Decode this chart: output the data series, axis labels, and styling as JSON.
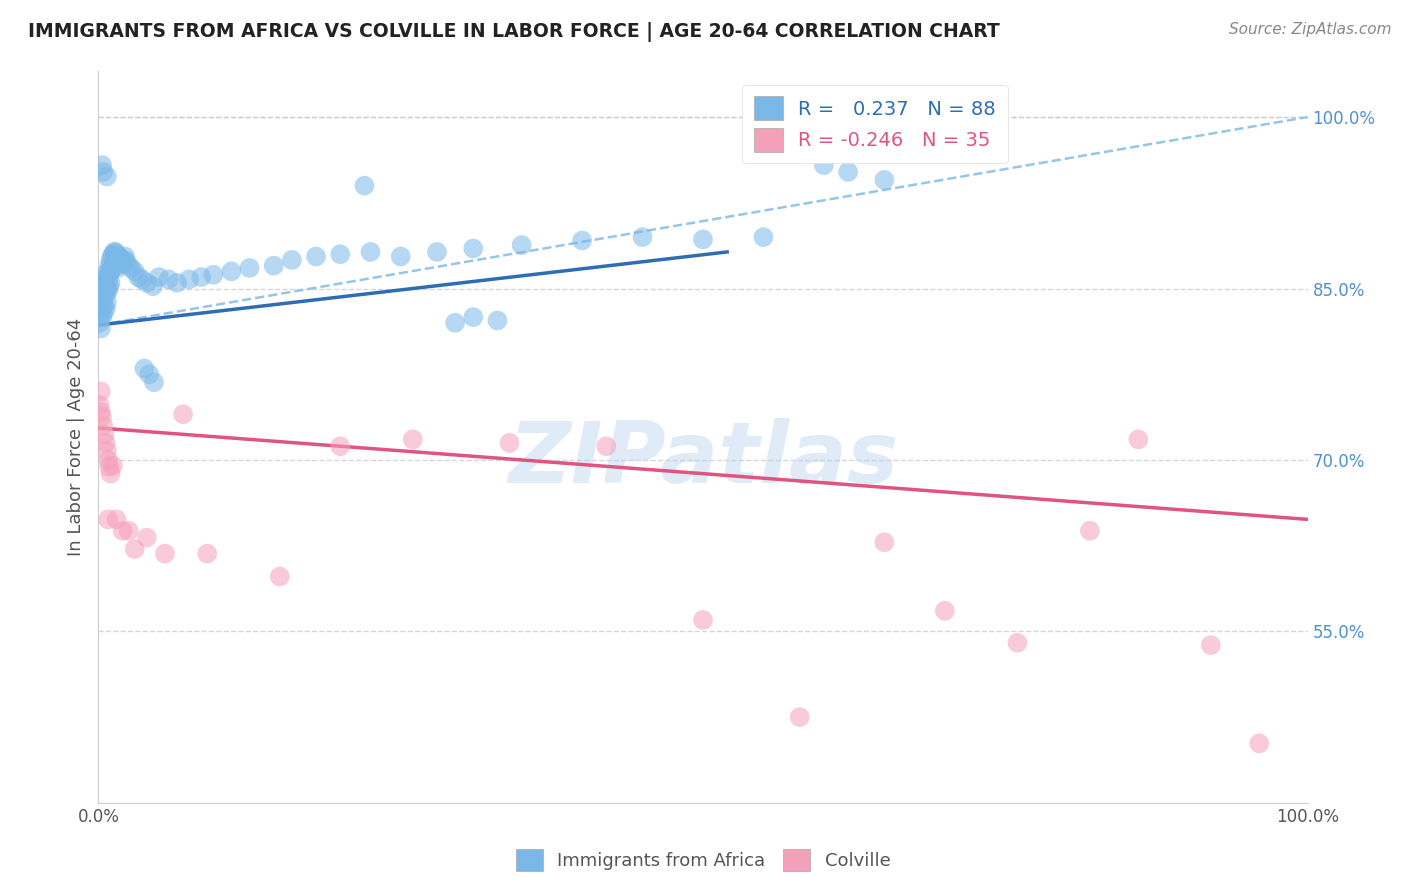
{
  "title": "IMMIGRANTS FROM AFRICA VS COLVILLE IN LABOR FORCE | AGE 20-64 CORRELATION CHART",
  "source": "Source: ZipAtlas.com",
  "ylabel": "In Labor Force | Age 20-64",
  "xlim": [
    0.0,
    1.0
  ],
  "ylim": [
    0.4,
    1.04
  ],
  "xticks": [
    0.0,
    0.2,
    0.4,
    0.6,
    0.8,
    1.0
  ],
  "xticklabels": [
    "0.0%",
    "",
    "",
    "",
    "",
    "100.0%"
  ],
  "ytick_positions": [
    0.55,
    0.7,
    0.85,
    1.0
  ],
  "ytick_labels": [
    "55.0%",
    "70.0%",
    "85.0%",
    "100.0%"
  ],
  "blue_color": "#7ab8e8",
  "pink_color": "#f5a0ba",
  "blue_line_color": "#2e6db5",
  "pink_line_color": "#e05480",
  "dashed_line_color": "#8bbfe8",
  "legend_R_color_blue": "#2e6db5",
  "legend_R_color_pink": "#e05480",
  "legend_N_color": "#2e6db5",
  "legend_text_blue": "R =   0.237   N = 88",
  "legend_text_pink": "R = -0.246   N = 35",
  "legend_label_blue": "Immigrants from Africa",
  "legend_label_pink": "Colville",
  "watermark": "ZIPatlas",
  "blue_scatter_x": [
    0.001,
    0.002,
    0.002,
    0.003,
    0.003,
    0.003,
    0.004,
    0.004,
    0.004,
    0.005,
    0.005,
    0.005,
    0.006,
    0.006,
    0.006,
    0.006,
    0.007,
    0.007,
    0.007,
    0.008,
    0.008,
    0.008,
    0.009,
    0.009,
    0.009,
    0.01,
    0.01,
    0.01,
    0.011,
    0.011,
    0.012,
    0.012,
    0.013,
    0.013,
    0.014,
    0.014,
    0.015,
    0.015,
    0.016,
    0.016,
    0.017,
    0.018,
    0.019,
    0.02,
    0.021,
    0.022,
    0.023,
    0.025,
    0.027,
    0.03,
    0.033,
    0.036,
    0.04,
    0.045,
    0.05,
    0.058,
    0.065,
    0.075,
    0.085,
    0.095,
    0.11,
    0.125,
    0.145,
    0.16,
    0.18,
    0.2,
    0.225,
    0.25,
    0.28,
    0.31,
    0.35,
    0.4,
    0.45,
    0.5,
    0.55,
    0.295,
    0.31,
    0.33,
    0.038,
    0.042,
    0.046,
    0.6,
    0.62,
    0.65,
    0.003,
    0.004,
    0.007,
    0.22
  ],
  "blue_scatter_y": [
    0.82,
    0.83,
    0.815,
    0.84,
    0.835,
    0.825,
    0.85,
    0.842,
    0.828,
    0.855,
    0.848,
    0.835,
    0.862,
    0.855,
    0.845,
    0.832,
    0.86,
    0.85,
    0.838,
    0.865,
    0.858,
    0.848,
    0.87,
    0.862,
    0.852,
    0.875,
    0.865,
    0.855,
    0.878,
    0.868,
    0.88,
    0.87,
    0.882,
    0.872,
    0.882,
    0.872,
    0.88,
    0.87,
    0.878,
    0.868,
    0.878,
    0.876,
    0.874,
    0.872,
    0.875,
    0.878,
    0.874,
    0.87,
    0.868,
    0.865,
    0.86,
    0.858,
    0.855,
    0.852,
    0.86,
    0.858,
    0.855,
    0.858,
    0.86,
    0.862,
    0.865,
    0.868,
    0.87,
    0.875,
    0.878,
    0.88,
    0.882,
    0.878,
    0.882,
    0.885,
    0.888,
    0.892,
    0.895,
    0.893,
    0.895,
    0.82,
    0.825,
    0.822,
    0.78,
    0.775,
    0.768,
    0.958,
    0.952,
    0.945,
    0.958,
    0.952,
    0.948,
    0.94
  ],
  "pink_scatter_x": [
    0.001,
    0.002,
    0.003,
    0.004,
    0.005,
    0.006,
    0.007,
    0.008,
    0.009,
    0.01,
    0.012,
    0.015,
    0.02,
    0.025,
    0.03,
    0.04,
    0.055,
    0.07,
    0.09,
    0.15,
    0.2,
    0.26,
    0.34,
    0.42,
    0.5,
    0.58,
    0.65,
    0.7,
    0.76,
    0.82,
    0.86,
    0.92,
    0.96,
    0.002,
    0.008
  ],
  "pink_scatter_y": [
    0.748,
    0.742,
    0.738,
    0.73,
    0.722,
    0.715,
    0.708,
    0.7,
    0.694,
    0.688,
    0.695,
    0.648,
    0.638,
    0.638,
    0.622,
    0.632,
    0.618,
    0.74,
    0.618,
    0.598,
    0.712,
    0.718,
    0.715,
    0.712,
    0.56,
    0.475,
    0.628,
    0.568,
    0.54,
    0.638,
    0.718,
    0.538,
    0.452,
    0.76,
    0.648
  ],
  "blue_trend_x": [
    0.0,
    0.52
  ],
  "blue_trend_y": [
    0.818,
    0.882
  ],
  "pink_trend_x": [
    0.0,
    1.0
  ],
  "pink_trend_y": [
    0.728,
    0.648
  ],
  "dashed_trend_x": [
    0.0,
    1.0
  ],
  "dashed_trend_y": [
    0.818,
    1.0
  ],
  "background_color": "#ffffff",
  "grid_color": "#cccccc"
}
